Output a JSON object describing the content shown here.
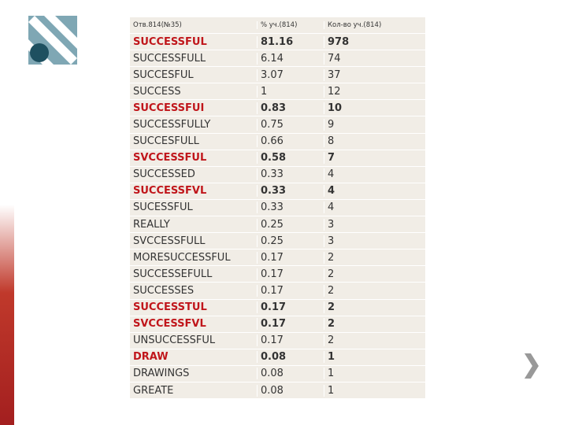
{
  "table": {
    "header": [
      "Отв.814(№35)",
      "% уч.(814)",
      "Кол-во уч.(814)"
    ],
    "highlight_color": "#c0161b",
    "rows": [
      {
        "answer": "SUCCESSFUL",
        "percent": 81.16,
        "count": 978,
        "highlight": true
      },
      {
        "answer": "SUCCESSFULL",
        "percent": 6.14,
        "count": 74,
        "highlight": false
      },
      {
        "answer": "SUCCESFUL",
        "percent": 3.07,
        "count": 37,
        "highlight": false
      },
      {
        "answer": "SUCCESS",
        "percent": 1,
        "count": 12,
        "highlight": false
      },
      {
        "answer": "SUCCESSFUI",
        "percent": 0.83,
        "count": 10,
        "highlight": true
      },
      {
        "answer": "SUCCESSFULLY",
        "percent": 0.75,
        "count": 9,
        "highlight": false
      },
      {
        "answer": "SUCCESFULL",
        "percent": 0.66,
        "count": 8,
        "highlight": false
      },
      {
        "answer": "SVCCESSFUL",
        "percent": 0.58,
        "count": 7,
        "highlight": true
      },
      {
        "answer": "SUCCESSED",
        "percent": 0.33,
        "count": 4,
        "highlight": false
      },
      {
        "answer": "SUCCESSFVL",
        "percent": 0.33,
        "count": 4,
        "highlight": true
      },
      {
        "answer": "SUCESSFUL",
        "percent": 0.33,
        "count": 4,
        "highlight": false
      },
      {
        "answer": "REALLY",
        "percent": 0.25,
        "count": 3,
        "highlight": false
      },
      {
        "answer": "SVCCESSFULL",
        "percent": 0.25,
        "count": 3,
        "highlight": false
      },
      {
        "answer": "MORESUCCESSFUL",
        "percent": 0.17,
        "count": 2,
        "highlight": false
      },
      {
        "answer": "SUCCESSEFULL",
        "percent": 0.17,
        "count": 2,
        "highlight": false
      },
      {
        "answer": "SUCCESSES",
        "percent": 0.17,
        "count": 2,
        "highlight": false
      },
      {
        "answer": "SUCCESSTUL",
        "percent": 0.17,
        "count": 2,
        "highlight": true
      },
      {
        "answer": "SVCCESSFVL",
        "percent": 0.17,
        "count": 2,
        "highlight": true
      },
      {
        "answer": "UNSUCCESSFUL",
        "percent": 0.17,
        "count": 2,
        "highlight": false
      },
      {
        "answer": "DRAW",
        "percent": 0.08,
        "count": 1,
        "highlight": true
      },
      {
        "answer": "DRAWINGS",
        "percent": 0.08,
        "count": 1,
        "highlight": false
      },
      {
        "answer": "GREATE",
        "percent": 0.08,
        "count": 1,
        "highlight": false
      }
    ]
  }
}
